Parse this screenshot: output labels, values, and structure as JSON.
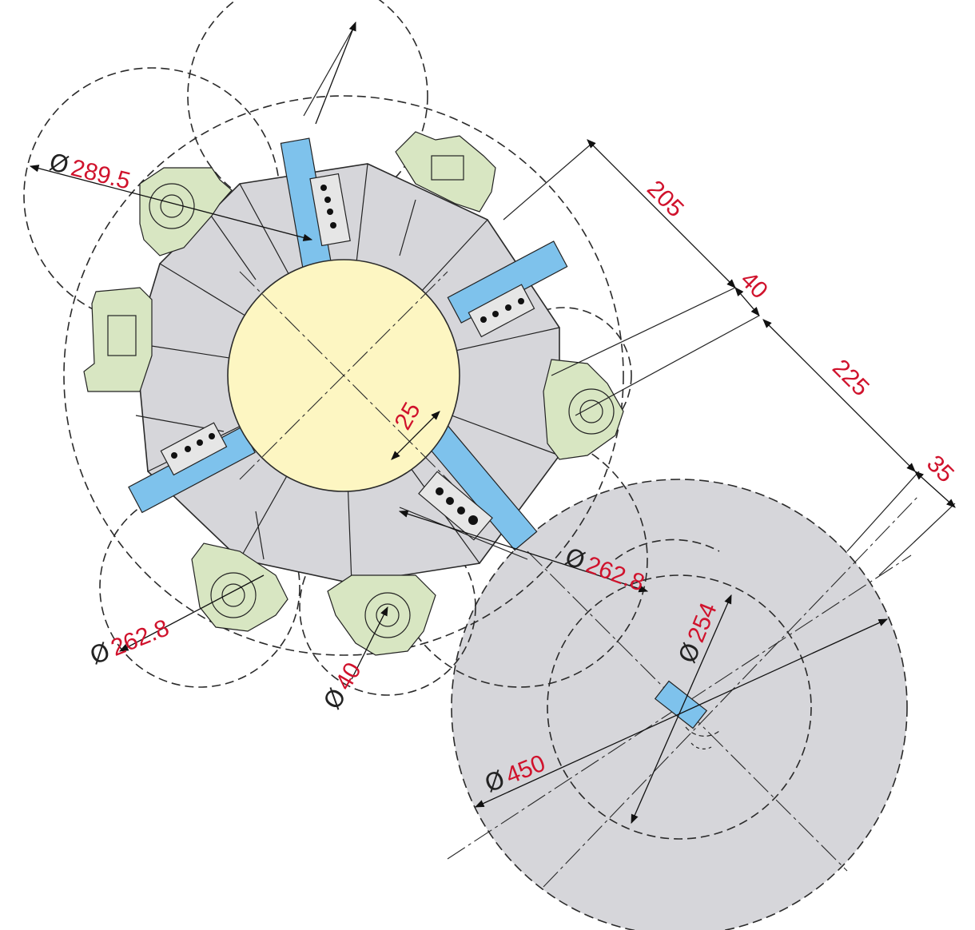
{
  "colors": {
    "body_gray": "#d6d6da",
    "hub_yellow": "#fdf6c2",
    "blade_blue": "#7ec2ec",
    "clamp_green": "#d8e6c2",
    "dimension_red": "#d0122c",
    "line": "#2a2a2a"
  },
  "diameter_symbol": "Ø",
  "dimensions": {
    "d_289_5": "289.5",
    "d_262_8_left": "262.8",
    "d_40": "40",
    "d_262_8_right": "262.8",
    "d_254": "254",
    "d_450": "450",
    "l_205": "205",
    "l_40": "40",
    "l_225": "225",
    "l_35": "35",
    "l_25": "25"
  }
}
